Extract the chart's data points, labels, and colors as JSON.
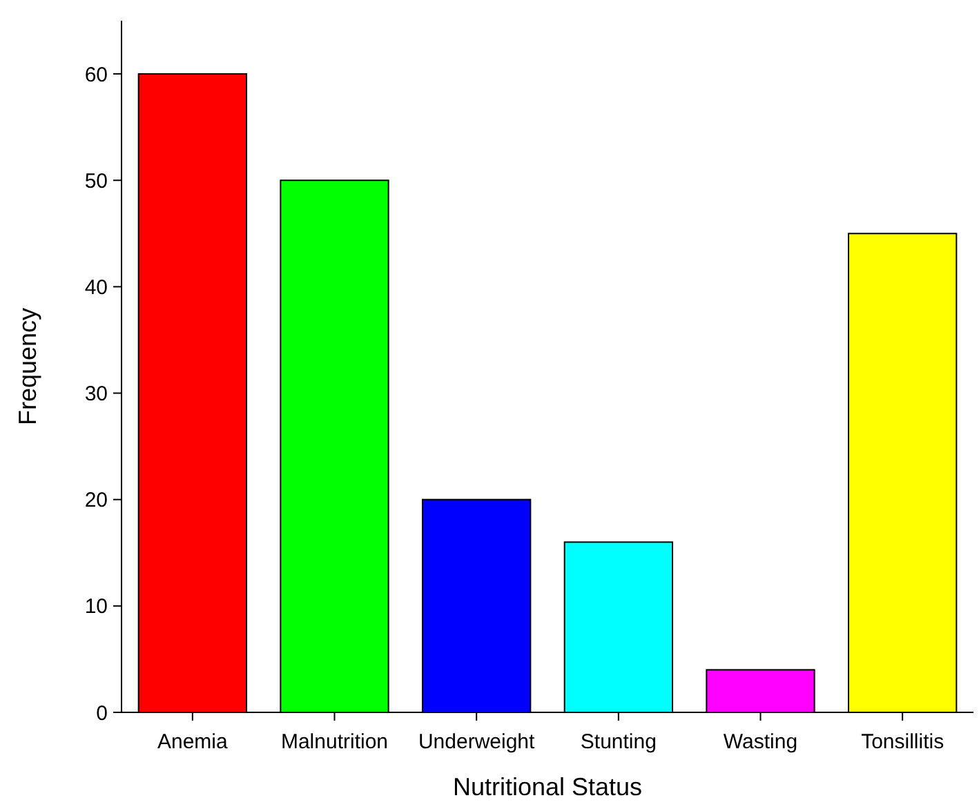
{
  "chart_data": {
    "type": "bar",
    "xlabel": "Nutritional Status",
    "ylabel": "Frequency",
    "categories": [
      "Anemia",
      "Malnutrition",
      "Underweight",
      "Stunting",
      "Wasting",
      "Tonsillitis"
    ],
    "values": [
      60,
      50,
      20,
      16,
      4,
      45
    ],
    "colors": [
      "#ff0000",
      "#00ff00",
      "#0000ff",
      "#00ffff",
      "#ff00ff",
      "#ffff00"
    ],
    "ylim": [
      0,
      65
    ],
    "yticks": [
      0,
      10,
      20,
      30,
      40,
      50,
      60
    ],
    "grid": false
  }
}
